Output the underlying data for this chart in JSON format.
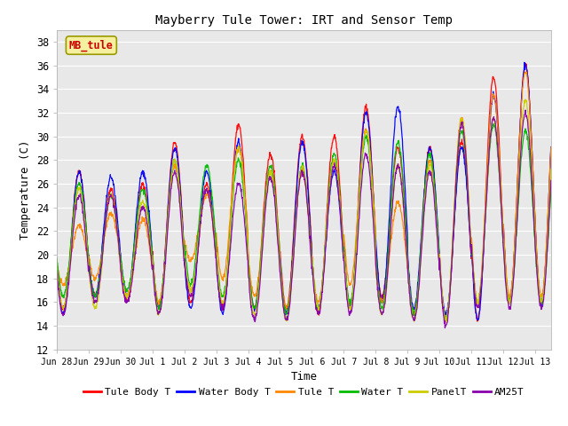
{
  "title": "Mayberry Tule Tower: IRT and Sensor Temp",
  "xlabel": "Time",
  "ylabel": "Temperature (C)",
  "ylim": [
    12,
    39
  ],
  "yticks": [
    12,
    14,
    16,
    18,
    20,
    22,
    24,
    26,
    28,
    30,
    32,
    34,
    36,
    38
  ],
  "background_color": "#e8e8e8",
  "inset_label": "MB_tule",
  "inset_label_color": "#cc0000",
  "inset_box_facecolor": "#f5f0a0",
  "inset_box_edgecolor": "#999900",
  "legend": [
    "Tule Body T",
    "Water Body T",
    "Tule T",
    "Water T",
    "PanelT",
    "AM25T"
  ],
  "line_colors": [
    "#ff0000",
    "#0000ff",
    "#ff8800",
    "#00bb00",
    "#cccc00",
    "#8800aa"
  ],
  "x_tick_labels": [
    "Jun 28",
    "Jun 29",
    "Jun 30",
    "Jul 1",
    "Jul 2",
    "Jul 3",
    "Jul 4",
    "Jul 5",
    "Jul 6",
    "Jul 7",
    "Jul 8",
    "Jul 9",
    "Jul 10",
    "Jul 11",
    "Jul 12",
    "Jul 13"
  ],
  "n_days": 15.5,
  "pts_per_day": 96,
  "day_peaks_0": [
    27.0,
    25.5,
    26.0,
    29.5,
    26.0,
    31.0,
    28.5,
    30.0,
    30.0,
    32.5,
    29.0,
    29.0,
    29.5,
    35.0,
    36.0
  ],
  "day_peaks_1": [
    27.0,
    26.5,
    27.0,
    29.0,
    27.0,
    29.5,
    27.0,
    29.5,
    27.0,
    32.0,
    32.5,
    29.0,
    29.0,
    33.5,
    36.0
  ],
  "day_peaks_2": [
    22.5,
    23.5,
    23.0,
    27.5,
    25.0,
    29.0,
    27.0,
    27.0,
    28.0,
    30.5,
    24.5,
    28.0,
    31.5,
    33.5,
    35.5
  ],
  "day_peaks_3": [
    26.0,
    25.0,
    25.5,
    28.0,
    27.5,
    28.0,
    27.5,
    27.5,
    28.5,
    30.0,
    29.5,
    28.5,
    30.5,
    31.0,
    30.5
  ],
  "day_peaks_4": [
    25.5,
    25.0,
    24.5,
    28.0,
    25.5,
    29.0,
    27.0,
    27.5,
    28.0,
    30.5,
    27.5,
    27.5,
    31.5,
    31.5,
    33.0
  ],
  "day_peaks_5": [
    25.0,
    25.0,
    24.0,
    27.0,
    25.5,
    26.0,
    26.5,
    27.0,
    27.5,
    28.5,
    27.5,
    27.0,
    31.0,
    31.5,
    32.0
  ],
  "day_mins_0": [
    15.5,
    16.5,
    16.0,
    15.5,
    16.0,
    15.5,
    15.5,
    15.5,
    15.0,
    15.5,
    16.5,
    15.0,
    14.5,
    14.5,
    16.0
  ],
  "day_mins_1": [
    15.0,
    16.5,
    16.5,
    15.5,
    15.5,
    15.0,
    15.5,
    15.0,
    15.5,
    15.5,
    16.0,
    15.5,
    15.0,
    14.5,
    16.0
  ],
  "day_mins_2": [
    17.5,
    18.0,
    16.5,
    16.0,
    19.5,
    18.0,
    16.5,
    15.5,
    16.0,
    17.5,
    16.0,
    15.0,
    14.5,
    16.0,
    16.5
  ],
  "day_mins_3": [
    16.5,
    16.5,
    17.0,
    15.5,
    17.5,
    16.5,
    15.5,
    15.0,
    15.5,
    16.0,
    15.5,
    15.0,
    14.5,
    16.0,
    16.0
  ],
  "day_mins_4": [
    15.5,
    15.5,
    16.5,
    15.0,
    17.0,
    16.0,
    15.0,
    14.5,
    15.5,
    15.5,
    15.0,
    14.5,
    14.5,
    16.0,
    16.0
  ],
  "day_mins_5": [
    15.0,
    16.0,
    16.0,
    15.0,
    16.5,
    15.5,
    14.5,
    14.5,
    15.0,
    15.0,
    15.0,
    14.5,
    14.0,
    15.5,
    15.5
  ]
}
